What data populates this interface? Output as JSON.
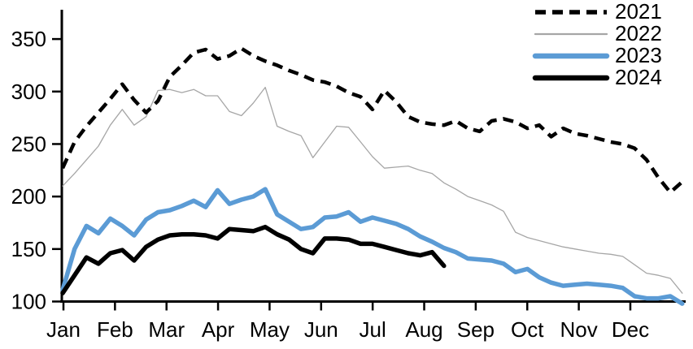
{
  "chart_data": {
    "type": "line",
    "title": "",
    "x_axis": {
      "tick_labels": [
        "Jan",
        "Feb",
        "Mar",
        "Apr",
        "May",
        "Jun",
        "Jul",
        "Aug",
        "Sep",
        "Oct",
        "Nov",
        "Dec"
      ]
    },
    "y_axis": {
      "min": 100,
      "max": 350,
      "ticks": [
        100,
        150,
        200,
        250,
        300,
        350
      ]
    },
    "grid": false,
    "legend_position": "top-right",
    "x_unit": "weeks",
    "legend": [
      {
        "label": "2021",
        "style": "dashed",
        "color": "#000000",
        "width": 4.5
      },
      {
        "label": "2022",
        "style": "solid",
        "color": "#a6a6a6",
        "width": 1.3
      },
      {
        "label": "2023",
        "style": "solid",
        "color": "#5b9bd5",
        "width": 5.5
      },
      {
        "label": "2024",
        "style": "solid",
        "color": "#000000",
        "width": 5.5
      }
    ],
    "series": [
      {
        "name": "2021",
        "values": [
          227,
          252,
          267,
          280,
          293,
          307,
          292,
          280,
          291,
          314,
          325,
          337,
          340,
          331,
          334,
          341,
          334,
          329,
          325,
          320,
          316,
          311,
          309,
          305,
          299,
          295,
          283,
          301,
          290,
          276,
          271,
          269,
          268,
          272,
          265,
          262,
          272,
          274,
          271,
          265,
          268,
          257,
          265,
          260,
          258,
          255,
          252,
          250,
          246,
          235,
          218,
          204,
          214
        ]
      },
      {
        "name": "2022",
        "values": [
          210,
          222,
          235,
          248,
          268,
          283,
          268,
          276,
          301,
          302,
          299,
          302,
          296,
          296,
          281,
          277,
          289,
          304,
          267,
          262,
          258,
          237,
          252,
          267,
          266,
          252,
          238,
          227,
          228,
          229,
          225,
          222,
          213,
          207,
          200,
          196,
          192,
          186,
          166,
          161,
          158,
          155,
          152,
          150,
          148,
          146,
          145,
          143,
          135,
          127,
          125,
          122,
          108
        ]
      },
      {
        "name": "2023",
        "values": [
          111,
          150,
          172,
          165,
          179,
          172,
          163,
          178,
          185,
          187,
          191,
          196,
          190,
          206,
          193,
          197,
          200,
          207,
          183,
          176,
          169,
          171,
          180,
          181,
          185,
          176,
          180,
          177,
          174,
          169,
          162,
          157,
          151,
          147,
          141,
          140,
          139,
          136,
          128,
          131,
          123,
          118,
          115,
          116,
          117,
          116,
          115,
          113,
          105,
          103,
          103,
          105,
          98
        ]
      },
      {
        "name": "2024",
        "values": [
          108,
          125,
          142,
          136,
          146,
          149,
          139,
          152,
          159,
          163,
          164,
          164,
          163,
          160,
          169,
          168,
          167,
          171,
          164,
          159,
          150,
          146,
          160,
          160,
          159,
          155,
          155,
          152,
          149,
          146,
          144,
          147,
          134
        ]
      }
    ]
  }
}
